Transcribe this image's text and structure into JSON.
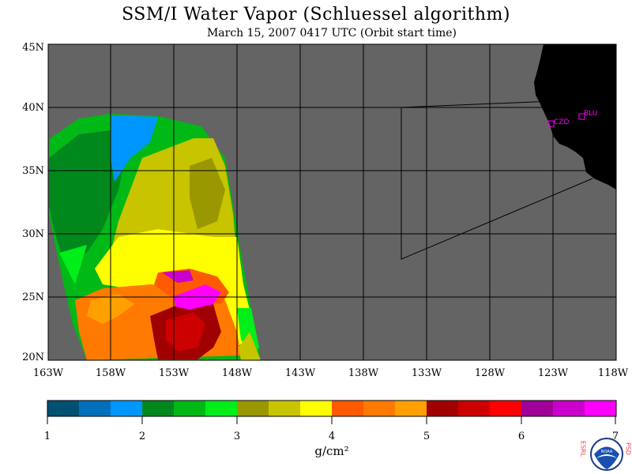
{
  "title": "SSM/I Water Vapor (Schluessel algorithm)",
  "subtitle": "March 15, 2007  0417 UTC  (Orbit start time)",
  "lat_labels": [
    "45N",
    "40N",
    "35N",
    "30N",
    "25N",
    "20N"
  ],
  "lon_labels": [
    "163W",
    "158W",
    "153W",
    "148W",
    "143W",
    "138W",
    "133W",
    "128W",
    "123W",
    "118W"
  ],
  "stations": [
    {
      "name": "CZD",
      "lat": 38.6,
      "lon": -122.9
    },
    {
      "name": "BLU",
      "lat": 39.3,
      "lon": -120.7
    }
  ],
  "colorbar": {
    "ticks": [
      "1",
      "2",
      "3",
      "4",
      "5",
      "6",
      "7"
    ],
    "colors": [
      "#005073",
      "#0070bb",
      "#0096ff",
      "#00881c",
      "#00b816",
      "#00ee1a",
      "#9a9800",
      "#c8c400",
      "#ffff00",
      "#ff5a00",
      "#ff7a00",
      "#ffa000",
      "#a00000",
      "#cc0000",
      "#ff0000",
      "#a00098",
      "#cc00cc",
      "#ff00ff"
    ],
    "unit": "g/cm²"
  },
  "colors": {
    "land": "#000000",
    "no_data": "#646464",
    "grid": "#000000",
    "station": "#ff00ff"
  },
  "logo": {
    "text_left": "ESRL",
    "text_right": "PSD",
    "center": "NOAA"
  }
}
